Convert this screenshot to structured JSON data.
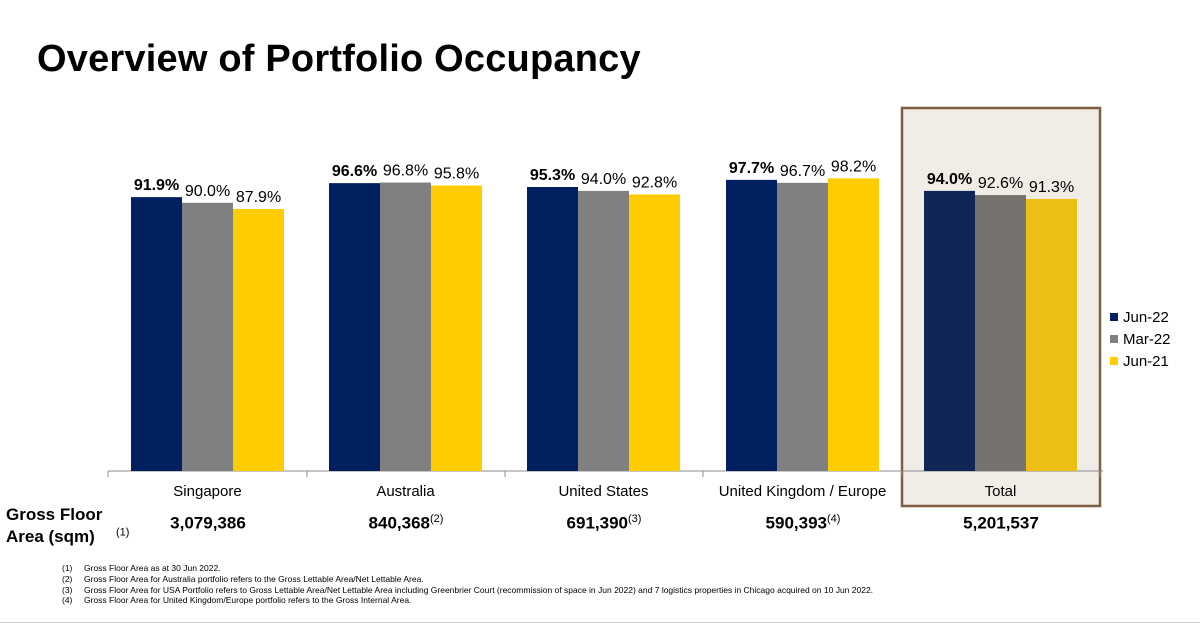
{
  "title": "Overview of Portfolio Occupancy",
  "chart_data": {
    "type": "bar",
    "categories": [
      "Singapore",
      "Australia",
      "United States",
      "United Kingdom / Europe",
      "Total"
    ],
    "series": [
      {
        "name": "Jun-22",
        "color": "#002060",
        "values": [
          91.9,
          96.6,
          95.3,
          97.7,
          94.0
        ]
      },
      {
        "name": "Mar-22",
        "color": "#808080",
        "values": [
          90.0,
          96.8,
          94.0,
          96.7,
          92.6
        ]
      },
      {
        "name": "Jun-21",
        "color": "#FFCC00",
        "values": [
          87.9,
          95.8,
          92.8,
          98.2,
          91.3
        ]
      }
    ],
    "data_labels": [
      [
        "91.9%",
        "96.6%",
        "95.3%",
        "97.7%",
        "94.0%"
      ],
      [
        "90.0%",
        "96.8%",
        "94.0%",
        "96.7%",
        "92.6%"
      ],
      [
        "87.9%",
        "95.8%",
        "92.8%",
        "98.2%",
        "91.3%"
      ]
    ],
    "highlighted_category": "Total",
    "highlight_fill": "#F1ECE5",
    "highlight_border": "#7F5F3F",
    "legend_position": "right",
    "grid": false
  },
  "gross_floor_area": {
    "label": "Gross Floor Area (sqm)",
    "label_note": "(1)",
    "values": [
      "3,079,386",
      "840,368",
      "691,390",
      "590,393",
      "5,201,537"
    ],
    "notes": [
      "",
      "(2)",
      "(3)",
      "(4)",
      ""
    ]
  },
  "footnotes": [
    {
      "num": "(1)",
      "text": "Gross Floor Area as at 30 Jun 2022."
    },
    {
      "num": "(2)",
      "text": "Gross Floor Area for Australia portfolio refers to the Gross Lettable Area/Net Lettable Area."
    },
    {
      "num": "(3)",
      "text": "Gross Floor Area for USA Portfolio refers to Gross Lettable Area/Net Lettable Area including Greenbrier Court (recommission of space in Jun 2022) and 7 logistics properties in Chicago acquired on 10 Jun 2022."
    },
    {
      "num": "(4)",
      "text": "Gross Floor Area for United Kingdom/Europe portfolio refers to the Gross Internal Area."
    }
  ]
}
